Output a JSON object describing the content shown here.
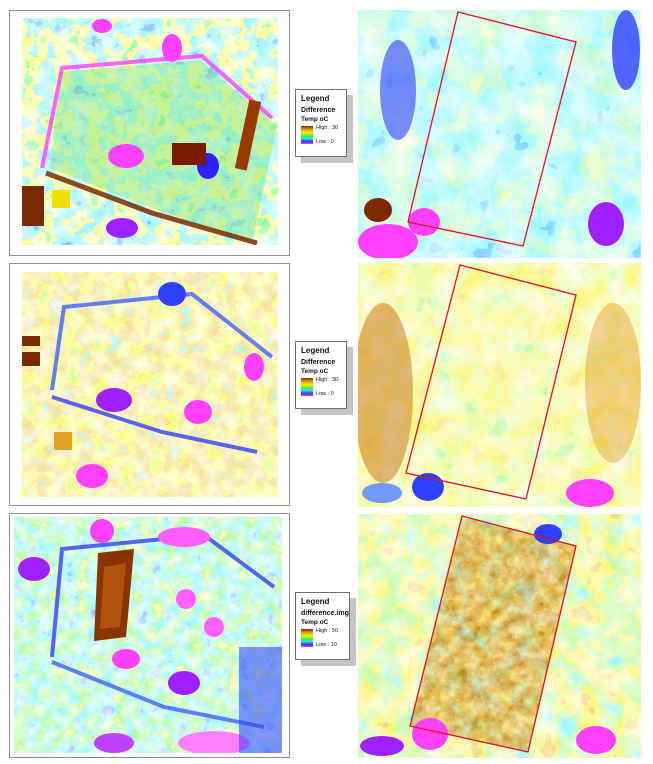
{
  "panels": [
    {
      "legend": {
        "title": "Legend",
        "layer": "Difference",
        "field": "Temp oC",
        "high": "High : 30",
        "low": "Low : 0"
      }
    },
    {
      "legend": {
        "title": "Legend",
        "layer": "Difference",
        "field": "Temp oC",
        "high": "High : 30",
        "low": "Low : 0"
      }
    },
    {
      "legend": {
        "title": "Legend",
        "layer": "difference.img",
        "field": "Temp oC",
        "high": "High : 50",
        "low": "Low : 10"
      }
    }
  ],
  "colors": {
    "boundary": "#e0102a",
    "ramp": [
      "#7a2a00",
      "#e0a020",
      "#f2f000",
      "#40f040",
      "#30e0e0",
      "#2040ff",
      "#ff30ff"
    ]
  }
}
